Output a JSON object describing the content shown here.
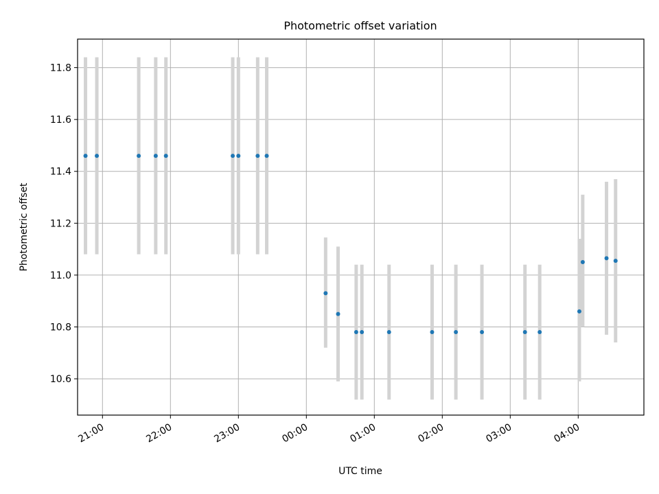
{
  "chart_data": {
    "type": "scatter",
    "title": "Photometric offset variation",
    "xlabel": "UTC time",
    "ylabel": "Photometric offset",
    "x_axis_kind": "time",
    "xlim": [
      "20:38",
      "04:58"
    ],
    "ylim": [
      10.46,
      11.91
    ],
    "x_ticks": [
      "21:00",
      "22:00",
      "23:00",
      "00:00",
      "01:00",
      "02:00",
      "03:00",
      "04:00"
    ],
    "y_ticks": [
      10.6,
      10.8,
      11.0,
      11.2,
      11.4,
      11.6,
      11.8
    ],
    "grid": true,
    "series": [
      {
        "points": [
          {
            "x": "20:45",
            "y": 11.46,
            "ylow": 11.08,
            "yhigh": 11.84
          },
          {
            "x": "20:55",
            "y": 11.46,
            "ylow": 11.08,
            "yhigh": 11.84
          },
          {
            "x": "21:32",
            "y": 11.46,
            "ylow": 11.08,
            "yhigh": 11.84
          },
          {
            "x": "21:47",
            "y": 11.46,
            "ylow": 11.08,
            "yhigh": 11.84
          },
          {
            "x": "21:56",
            "y": 11.46,
            "ylow": 11.08,
            "yhigh": 11.84
          },
          {
            "x": "22:55",
            "y": 11.46,
            "ylow": 11.08,
            "yhigh": 11.84
          },
          {
            "x": "23:00",
            "y": 11.46,
            "ylow": 11.08,
            "yhigh": 11.84
          },
          {
            "x": "23:17",
            "y": 11.46,
            "ylow": 11.08,
            "yhigh": 11.84
          },
          {
            "x": "23:25",
            "y": 11.46,
            "ylow": 11.08,
            "yhigh": 11.84
          },
          {
            "x": "00:17",
            "y": 10.93,
            "ylow": 10.72,
            "yhigh": 11.145
          },
          {
            "x": "00:28",
            "y": 10.85,
            "ylow": 10.59,
            "yhigh": 11.11
          },
          {
            "x": "00:44",
            "y": 10.78,
            "ylow": 10.52,
            "yhigh": 11.04
          },
          {
            "x": "00:49",
            "y": 10.78,
            "ylow": 10.52,
            "yhigh": 11.04
          },
          {
            "x": "01:13",
            "y": 10.78,
            "ylow": 10.52,
            "yhigh": 11.04
          },
          {
            "x": "01:51",
            "y": 10.78,
            "ylow": 10.52,
            "yhigh": 11.04
          },
          {
            "x": "02:12",
            "y": 10.78,
            "ylow": 10.52,
            "yhigh": 11.04
          },
          {
            "x": "02:35",
            "y": 10.78,
            "ylow": 10.52,
            "yhigh": 11.04
          },
          {
            "x": "03:13",
            "y": 10.78,
            "ylow": 10.52,
            "yhigh": 11.04
          },
          {
            "x": "03:26",
            "y": 10.78,
            "ylow": 10.52,
            "yhigh": 11.04
          },
          {
            "x": "04:01",
            "y": 10.86,
            "ylow": 10.59,
            "yhigh": 11.14
          },
          {
            "x": "04:04",
            "y": 11.05,
            "ylow": 10.8,
            "yhigh": 11.31
          },
          {
            "x": "04:25",
            "y": 11.065,
            "ylow": 10.77,
            "yhigh": 11.36
          },
          {
            "x": "04:33",
            "y": 11.055,
            "ylow": 10.74,
            "yhigh": 11.37
          }
        ],
        "color": "#1f77b4",
        "errorbar_color": "#d3d3d3"
      }
    ]
  }
}
